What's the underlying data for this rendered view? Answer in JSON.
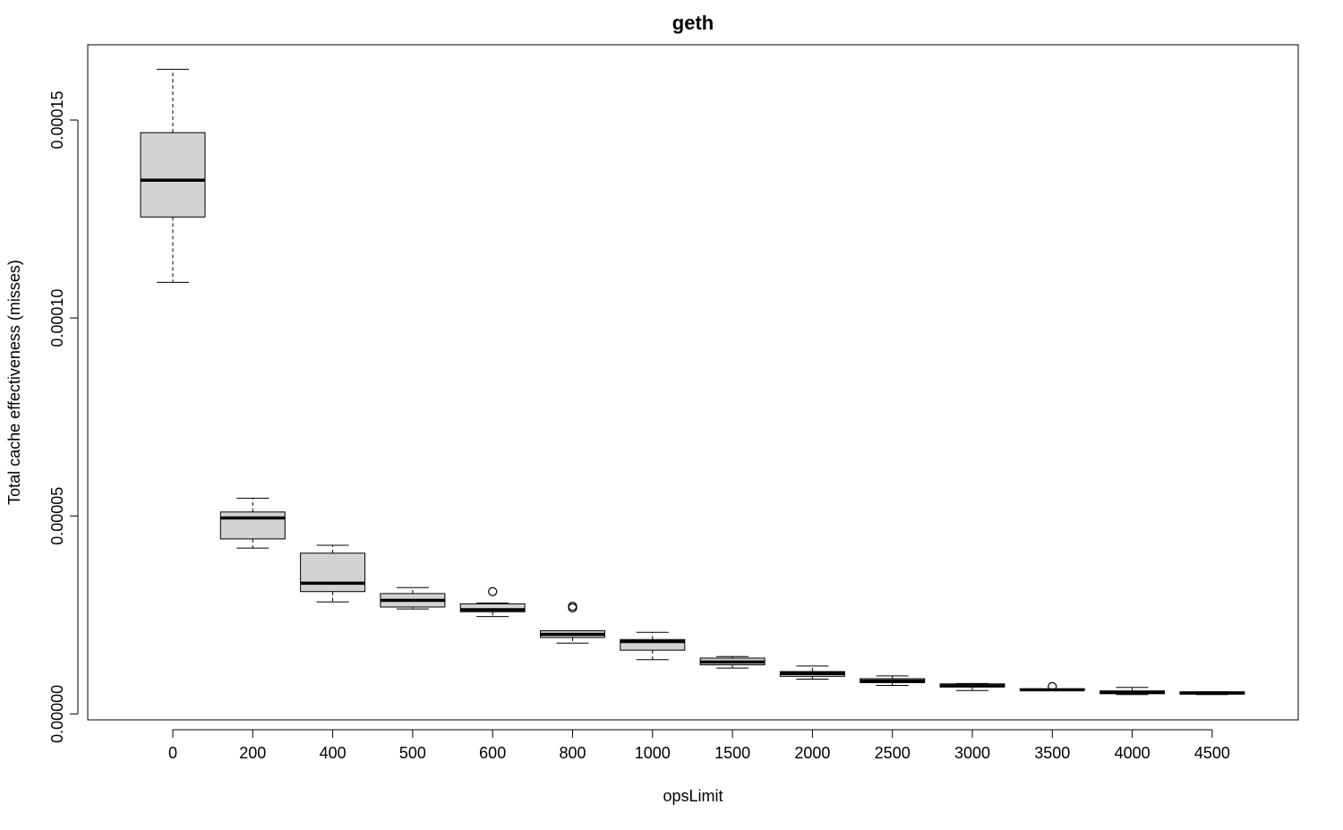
{
  "chart_data": {
    "type": "boxplot",
    "title": "geth",
    "xlabel": "opsLimit",
    "ylabel": "Total cache effectiveness (misses)",
    "ylim": [
      -1.5e-06,
      0.000169
    ],
    "y_ticks": [
      0,
      5e-05,
      0.0001,
      0.00015
    ],
    "y_tick_labels": [
      "0.00000",
      "0.00005",
      "0.00010",
      "0.00015"
    ],
    "grid": false,
    "legend": "none",
    "colors": {
      "box_fill": "#d3d3d3",
      "stroke": "#000000",
      "background": "#ffffff"
    },
    "categories": [
      "0",
      "200",
      "400",
      "500",
      "600",
      "800",
      "1000",
      "1500",
      "2000",
      "2500",
      "3000",
      "3500",
      "4000",
      "4500"
    ],
    "boxes": [
      {
        "whisker_low": 0.000109,
        "q1": 0.0001255,
        "median": 0.0001348,
        "q3": 0.0001468,
        "whisker_high": 0.0001628,
        "outliers": []
      },
      {
        "whisker_low": 4.19e-05,
        "q1": 4.42e-05,
        "median": 4.95e-05,
        "q3": 5.1e-05,
        "whisker_high": 5.45e-05,
        "outliers": []
      },
      {
        "whisker_low": 2.83e-05,
        "q1": 3.09e-05,
        "median": 3.3e-05,
        "q3": 4.06e-05,
        "whisker_high": 4.26e-05,
        "outliers": []
      },
      {
        "whisker_low": 2.65e-05,
        "q1": 2.7e-05,
        "median": 2.87e-05,
        "q3": 3.04e-05,
        "whisker_high": 3.19e-05,
        "outliers": []
      },
      {
        "whisker_low": 2.46e-05,
        "q1": 2.58e-05,
        "median": 2.63e-05,
        "q3": 2.78e-05,
        "whisker_high": 2.8e-05,
        "outliers": [
          3.09e-05
        ]
      },
      {
        "whisker_low": 1.79e-05,
        "q1": 1.93e-05,
        "median": 2.01e-05,
        "q3": 2.1e-05,
        "whisker_high": 2.1e-05,
        "outliers": [
          2.68e-05,
          2.72e-05
        ]
      },
      {
        "whisker_low": 1.37e-05,
        "q1": 1.61e-05,
        "median": 1.83e-05,
        "q3": 1.88e-05,
        "whisker_high": 2.06e-05,
        "outliers": []
      },
      {
        "whisker_low": 1.16e-05,
        "q1": 1.24e-05,
        "median": 1.31e-05,
        "q3": 1.41e-05,
        "whisker_high": 1.45e-05,
        "outliers": []
      },
      {
        "whisker_low": 8.8e-06,
        "q1": 9.5e-06,
        "median": 1.02e-05,
        "q3": 1.07e-05,
        "whisker_high": 1.21e-05,
        "outliers": []
      },
      {
        "whisker_low": 7.2e-06,
        "q1": 7.9e-06,
        "median": 8.3e-06,
        "q3": 8.9e-06,
        "whisker_high": 9.6e-06,
        "outliers": []
      },
      {
        "whisker_low": 5.9e-06,
        "q1": 6.8e-06,
        "median": 7.1e-06,
        "q3": 7.6e-06,
        "whisker_high": 7.7e-06,
        "outliers": []
      },
      {
        "whisker_low": 5.9e-06,
        "q1": 6e-06,
        "median": 6.1e-06,
        "q3": 6.3e-06,
        "whisker_high": 6.3e-06,
        "outliers": [
          6.9e-06
        ]
      },
      {
        "whisker_low": 4.9e-06,
        "q1": 5.1e-06,
        "median": 5.5e-06,
        "q3": 5.8e-06,
        "whisker_high": 6.7e-06,
        "outliers": []
      },
      {
        "whisker_low": 4.9e-06,
        "q1": 5e-06,
        "median": 5.3e-06,
        "q3": 5.5e-06,
        "whisker_high": 5.6e-06,
        "outliers": []
      }
    ]
  }
}
